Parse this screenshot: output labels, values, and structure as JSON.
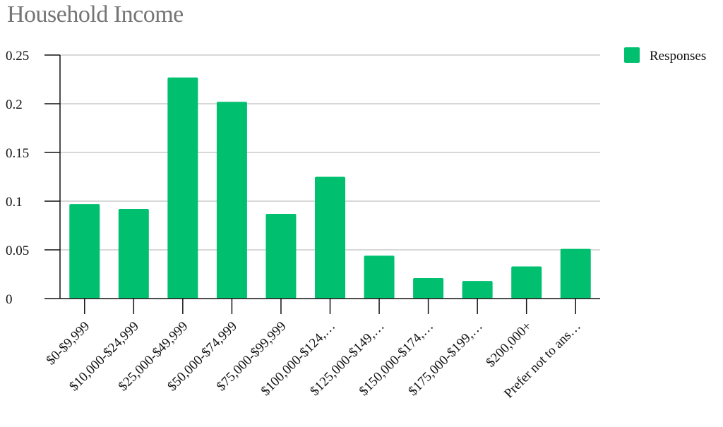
{
  "title": "Household Income",
  "colors": {
    "bar": "#00c06f",
    "grid": "#cccccc",
    "axis": "#111111"
  },
  "chart_data": {
    "type": "bar",
    "title": "Household Income",
    "xlabel": "",
    "ylabel": "",
    "ylim": [
      0,
      0.25
    ],
    "yticks": [
      0,
      0.05,
      0.1,
      0.15,
      0.2,
      0.25
    ],
    "ytick_labels": [
      "0",
      "0.05",
      "0.1",
      "0.15",
      "0.2",
      "0.25"
    ],
    "grid": true,
    "legend_position": "top-right",
    "categories": [
      "$0-$9,999",
      "$10,000-$24,999",
      "$25,000-$49,999",
      "$50,000-$74,999",
      "$75,000-$99,999",
      "$100,000-$124,…",
      "$125,000-$149,…",
      "$150,000-$174,…",
      "$175,000-$199,…",
      "$200,000+",
      "Prefer not to ans…"
    ],
    "series": [
      {
        "name": "Responses",
        "color": "#00c06f",
        "values": [
          0.097,
          0.092,
          0.227,
          0.202,
          0.087,
          0.125,
          0.044,
          0.021,
          0.018,
          0.033,
          0.051
        ]
      }
    ]
  }
}
